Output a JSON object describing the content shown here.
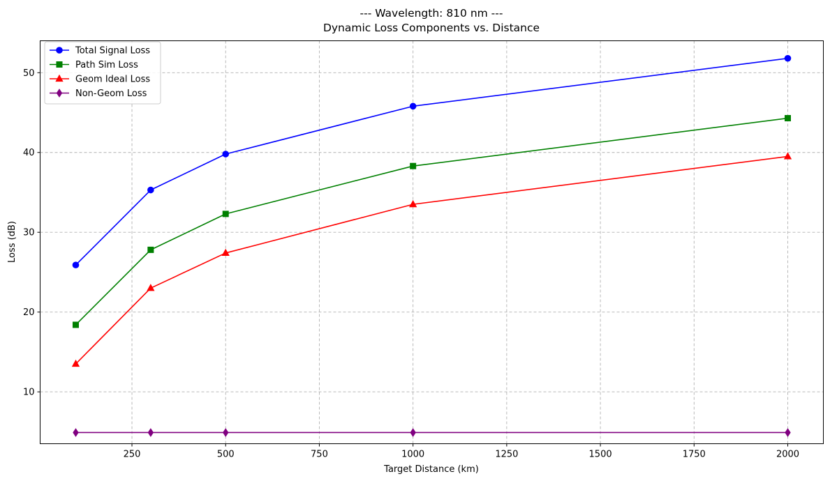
{
  "chart_data": {
    "type": "line",
    "title": "--- Wavelength: 810 nm ---",
    "subtitle": "Dynamic Loss Components vs. Distance",
    "xlabel": "Target Distance (km)",
    "ylabel": "Loss (dB)",
    "xlim": [
      5,
      2095
    ],
    "ylim": [
      3.5,
      54
    ],
    "xticks": [
      250,
      500,
      750,
      1000,
      1250,
      1500,
      1750,
      2000
    ],
    "yticks": [
      10,
      20,
      30,
      40,
      50
    ],
    "grid": true,
    "legend_position": "top-left",
    "x": [
      100,
      300,
      500,
      1000,
      2000
    ],
    "series": [
      {
        "name": "Total Signal Loss",
        "color": "#0000ff",
        "marker": "circle",
        "values": [
          25.9,
          35.3,
          39.8,
          45.8,
          51.8
        ]
      },
      {
        "name": "Path Sim Loss",
        "color": "#008000",
        "marker": "square",
        "values": [
          18.4,
          27.8,
          32.3,
          38.3,
          44.3
        ]
      },
      {
        "name": "Geom Ideal Loss",
        "color": "#ff0000",
        "marker": "triangle",
        "values": [
          13.5,
          23.0,
          27.4,
          33.5,
          39.5
        ]
      },
      {
        "name": "Non-Geom Loss",
        "color": "#800080",
        "marker": "diamond",
        "values": [
          4.9,
          4.9,
          4.9,
          4.9,
          4.9
        ]
      }
    ]
  }
}
